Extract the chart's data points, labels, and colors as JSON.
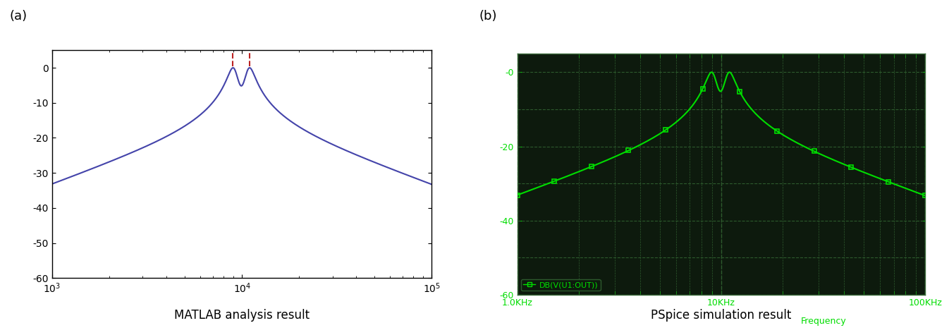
{
  "panel_a": {
    "title": "MATLAB analysis result",
    "label": "(a)",
    "xmin": 1000,
    "xmax": 100000,
    "ymin": -60,
    "ymax": 5,
    "yticks": [
      0,
      -10,
      -20,
      -30,
      -40,
      -50,
      -60
    ],
    "line_color": "#4444aa",
    "marker_color": "#bb2222",
    "f0": 10000,
    "Q": 8.0,
    "coupling": 0.18
  },
  "panel_b": {
    "title": "PSpice simulation result",
    "label": "(b)",
    "xmin": 1000,
    "xmax": 100000,
    "ymin": -60,
    "ymax": 5,
    "yticks": [
      -60,
      -40,
      -20,
      0
    ],
    "bg_color": "#0d1a0d",
    "grid_color": "#2d5a2d",
    "line_color": "#00dd00",
    "marker_color": "#00dd00",
    "xtick_labels": [
      "1.0KHz",
      "10KHz",
      "100KHz"
    ],
    "xlabel": "Frequency",
    "legend_label": "DB(V(U1:OUT))",
    "f0": 10000,
    "Q": 8.0,
    "coupling": 0.18,
    "n_markers": 12
  }
}
